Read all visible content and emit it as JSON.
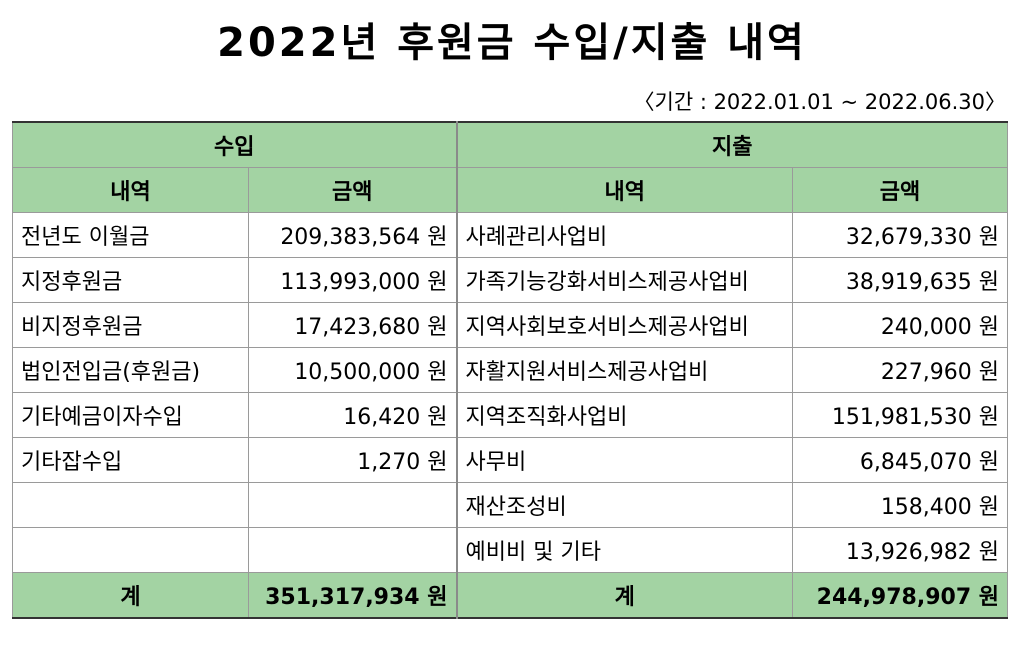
{
  "title": "2022년 후원금 수입/지출 내역",
  "period": "〈기간 : 2022.01.01 ~ 2022.06.30〉",
  "headers": {
    "income": "수입",
    "expense": "지출",
    "item": "내역",
    "amount": "금액"
  },
  "rows": [
    {
      "in_item": "전년도 이월금",
      "in_amount": "209,383,564 원",
      "out_item": "사례관리사업비",
      "out_amount": "32,679,330 원"
    },
    {
      "in_item": "지정후원금",
      "in_amount": "113,993,000 원",
      "out_item": "가족기능강화서비스제공사업비",
      "out_amount": "38,919,635 원"
    },
    {
      "in_item": "비지정후원금",
      "in_amount": "17,423,680 원",
      "out_item": "지역사회보호서비스제공사업비",
      "out_amount": "240,000 원"
    },
    {
      "in_item": "법인전입금(후원금)",
      "in_amount": "10,500,000 원",
      "out_item": "자활지원서비스제공사업비",
      "out_amount": "227,960 원"
    },
    {
      "in_item": "기타예금이자수입",
      "in_amount": "16,420 원",
      "out_item": "지역조직화사업비",
      "out_amount": "151,981,530 원"
    },
    {
      "in_item": "기타잡수입",
      "in_amount": "1,270 원",
      "out_item": "사무비",
      "out_amount": "6,845,070 원"
    },
    {
      "in_item": "",
      "in_amount": "",
      "out_item": "재산조성비",
      "out_amount": "158,400 원"
    },
    {
      "in_item": "",
      "in_amount": "",
      "out_item": "예비비 및 기타",
      "out_amount": "13,926,982 원"
    }
  ],
  "total": {
    "in_label": "계",
    "in_amount": "351,317,934 원",
    "out_label": "계",
    "out_amount": "244,978,907 원"
  }
}
